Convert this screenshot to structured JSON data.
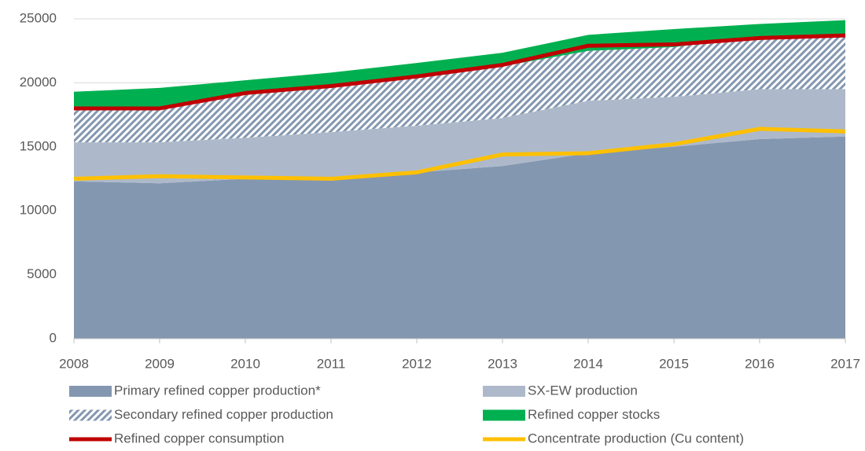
{
  "chart_data": {
    "type": "area",
    "x": [
      2008,
      2009,
      2010,
      2011,
      2012,
      2013,
      2014,
      2015,
      2016,
      2017
    ],
    "xlim": [
      2008,
      2017
    ],
    "xticks": [
      2008,
      2009,
      2010,
      2011,
      2012,
      2013,
      2014,
      2015,
      2016,
      2017
    ],
    "ylim": [
      0,
      25000
    ],
    "yticks": [
      0,
      5000,
      10000,
      15000,
      20000,
      25000
    ],
    "grid": true,
    "series": [
      {
        "name": "Primary refined copper production*",
        "style": "area",
        "color": "#8497b0",
        "values": [
          12300,
          12150,
          12500,
          12500,
          13000,
          13500,
          14500,
          15000,
          15600,
          15800
        ]
      },
      {
        "name": "SX-EW production",
        "style": "area",
        "color": "#adb9ca",
        "values": [
          3050,
          3200,
          3200,
          3650,
          3650,
          3750,
          4100,
          3900,
          3900,
          3700
        ]
      },
      {
        "name": "Secondary refined copper production",
        "style": "area",
        "pattern": "hatch",
        "color": "#8497b0",
        "values": [
          2700,
          2700,
          3500,
          3600,
          3850,
          4050,
          3900,
          3900,
          4100,
          4200
        ]
      },
      {
        "name": "Refined copper stocks",
        "style": "area",
        "color": "#00b050",
        "values": [
          1250,
          1550,
          1000,
          1050,
          1050,
          1050,
          1250,
          1400,
          1000,
          1200
        ]
      },
      {
        "name": "Refined copper consumption",
        "style": "line",
        "color": "#c00000",
        "values": [
          18000,
          18000,
          19200,
          19750,
          20500,
          21400,
          22900,
          23000,
          23500,
          23700
        ]
      },
      {
        "name": "Concentrate production (Cu content)",
        "style": "line",
        "color": "#ffc000",
        "values": [
          12500,
          12700,
          12600,
          12500,
          13000,
          14400,
          14500,
          15200,
          16400,
          16200
        ]
      }
    ]
  }
}
